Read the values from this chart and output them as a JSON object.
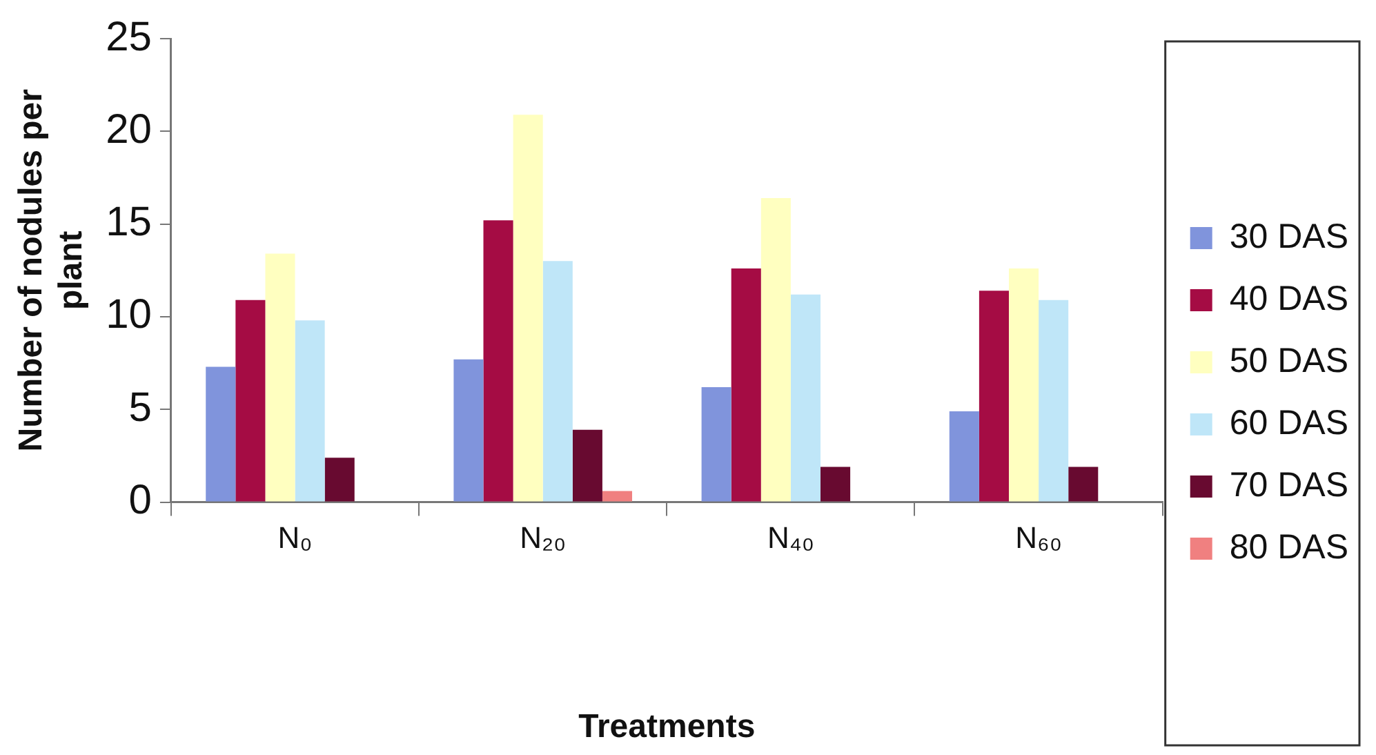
{
  "chart_data": {
    "type": "bar",
    "xlabel": "Treatments",
    "ylabel": "Number of nodules per plant",
    "categories": [
      "N₀",
      "N₂₀",
      "N₄₀",
      "N₆₀"
    ],
    "series": [
      {
        "name": "30 DAS",
        "color": "#8094dc",
        "values": [
          7.3,
          7.7,
          6.2,
          4.9
        ]
      },
      {
        "name": "40 DAS",
        "color": "#a50c44",
        "values": [
          10.9,
          15.2,
          12.6,
          11.4
        ]
      },
      {
        "name": "50 DAS",
        "color": "#ffffc0",
        "values": [
          13.4,
          20.9,
          16.4,
          12.6
        ]
      },
      {
        "name": "60 DAS",
        "color": "#bfe6f8",
        "values": [
          9.8,
          13.0,
          11.2,
          10.9
        ]
      },
      {
        "name": "70 DAS",
        "color": "#680a30",
        "values": [
          2.4,
          3.9,
          1.9,
          1.9
        ]
      },
      {
        "name": "80 DAS",
        "color": "#f08080",
        "values": [
          null,
          0.6,
          null,
          null
        ]
      }
    ],
    "ylim": [
      0,
      25
    ],
    "yticks": [
      0,
      5,
      10,
      15,
      20,
      25
    ],
    "grid": false,
    "legend": "right"
  }
}
